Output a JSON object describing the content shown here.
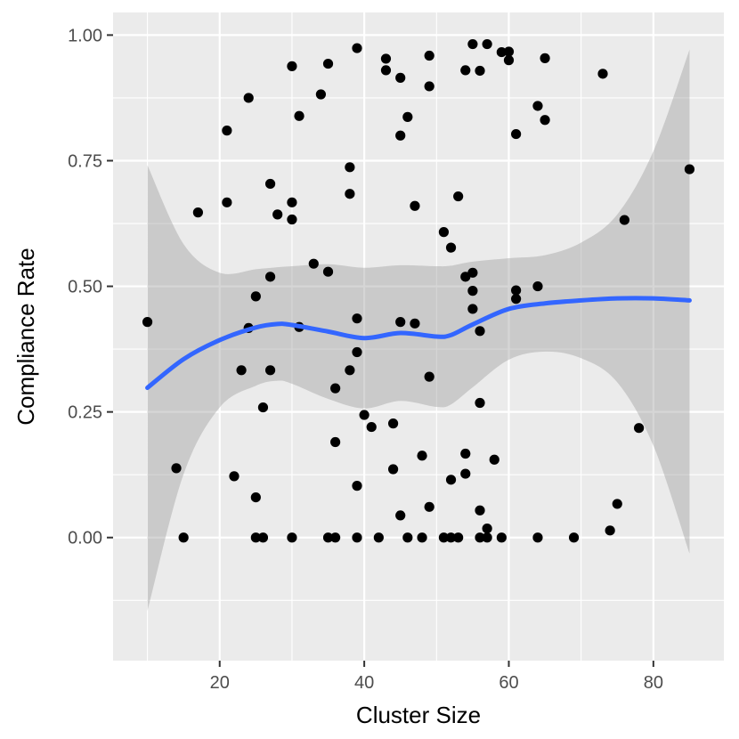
{
  "chart_data": {
    "type": "scatter",
    "title": "",
    "xlabel": "Cluster Size",
    "ylabel": "Compliance Rate",
    "xlim": [
      5.25,
      89.75
    ],
    "ylim": [
      -0.245,
      1.045
    ],
    "xticks": [
      20,
      40,
      60,
      80
    ],
    "xtick_labels": [
      "20",
      "40",
      "60",
      "80"
    ],
    "yticks": [
      0,
      0.25,
      0.5,
      0.75,
      1.0
    ],
    "ytick_labels": [
      "0.00",
      "0.25",
      "0.50",
      "0.75",
      "1.00"
    ],
    "grid": true,
    "legend": "none",
    "colors": {
      "panel": "#ebebeb",
      "grid": "#ffffff",
      "point": "#000000",
      "smooth_line": "#3366ff",
      "ribbon": "#999999"
    },
    "points": [
      {
        "x": 10,
        "y": 0.429
      },
      {
        "x": 14,
        "y": 0.138
      },
      {
        "x": 15,
        "y": 0.0
      },
      {
        "x": 17,
        "y": 0.647
      },
      {
        "x": 21,
        "y": 0.81
      },
      {
        "x": 21,
        "y": 0.667
      },
      {
        "x": 22,
        "y": 0.122
      },
      {
        "x": 23,
        "y": 0.333
      },
      {
        "x": 24,
        "y": 0.875
      },
      {
        "x": 24,
        "y": 0.417
      },
      {
        "x": 25,
        "y": 0.48
      },
      {
        "x": 25,
        "y": 0.08
      },
      {
        "x": 25,
        "y": 0.0
      },
      {
        "x": 26,
        "y": 0.259
      },
      {
        "x": 26,
        "y": 0.0
      },
      {
        "x": 27,
        "y": 0.704
      },
      {
        "x": 27,
        "y": 0.519
      },
      {
        "x": 27,
        "y": 0.333
      },
      {
        "x": 28,
        "y": 0.643
      },
      {
        "x": 30,
        "y": 0.938
      },
      {
        "x": 30,
        "y": 0.667
      },
      {
        "x": 30,
        "y": 0.633
      },
      {
        "x": 30,
        "y": 0.0
      },
      {
        "x": 31,
        "y": 0.839
      },
      {
        "x": 31,
        "y": 0.419
      },
      {
        "x": 33,
        "y": 0.545
      },
      {
        "x": 34,
        "y": 0.882
      },
      {
        "x": 35,
        "y": 0.943
      },
      {
        "x": 35,
        "y": 0.529
      },
      {
        "x": 35,
        "y": 0.0
      },
      {
        "x": 36,
        "y": 0.297
      },
      {
        "x": 36,
        "y": 0.19
      },
      {
        "x": 36,
        "y": 0.0
      },
      {
        "x": 38,
        "y": 0.737
      },
      {
        "x": 38,
        "y": 0.684
      },
      {
        "x": 38,
        "y": 0.333
      },
      {
        "x": 39,
        "y": 0.974
      },
      {
        "x": 39,
        "y": 0.436
      },
      {
        "x": 39,
        "y": 0.369
      },
      {
        "x": 39,
        "y": 0.103
      },
      {
        "x": 39,
        "y": 0.0
      },
      {
        "x": 40,
        "y": 0.244
      },
      {
        "x": 41,
        "y": 0.22
      },
      {
        "x": 42,
        "y": 0.0
      },
      {
        "x": 43,
        "y": 0.953
      },
      {
        "x": 43,
        "y": 0.93
      },
      {
        "x": 44,
        "y": 0.227
      },
      {
        "x": 44,
        "y": 0.136
      },
      {
        "x": 45,
        "y": 0.915
      },
      {
        "x": 45,
        "y": 0.8
      },
      {
        "x": 45,
        "y": 0.429
      },
      {
        "x": 45,
        "y": 0.044
      },
      {
        "x": 46,
        "y": 0.837
      },
      {
        "x": 46,
        "y": 0.0
      },
      {
        "x": 47,
        "y": 0.66
      },
      {
        "x": 47,
        "y": 0.426
      },
      {
        "x": 48,
        "y": 0.163
      },
      {
        "x": 48,
        "y": 0.0
      },
      {
        "x": 49,
        "y": 0.959
      },
      {
        "x": 49,
        "y": 0.898
      },
      {
        "x": 49,
        "y": 0.32
      },
      {
        "x": 49,
        "y": 0.061
      },
      {
        "x": 51,
        "y": 0.608
      },
      {
        "x": 51,
        "y": 0.0
      },
      {
        "x": 52,
        "y": 0.577
      },
      {
        "x": 52,
        "y": 0.115
      },
      {
        "x": 52,
        "y": 0.0
      },
      {
        "x": 53,
        "y": 0.679
      },
      {
        "x": 53,
        "y": 0.0
      },
      {
        "x": 54,
        "y": 0.93
      },
      {
        "x": 54,
        "y": 0.519
      },
      {
        "x": 54,
        "y": 0.167
      },
      {
        "x": 54,
        "y": 0.127
      },
      {
        "x": 55,
        "y": 0.982
      },
      {
        "x": 55,
        "y": 0.527
      },
      {
        "x": 55,
        "y": 0.491
      },
      {
        "x": 55,
        "y": 0.455
      },
      {
        "x": 56,
        "y": 0.929
      },
      {
        "x": 56,
        "y": 0.411
      },
      {
        "x": 56,
        "y": 0.268
      },
      {
        "x": 56,
        "y": 0.054
      },
      {
        "x": 56,
        "y": 0.0
      },
      {
        "x": 57,
        "y": 0.982
      },
      {
        "x": 57,
        "y": 0.018
      },
      {
        "x": 57,
        "y": 0.0
      },
      {
        "x": 58,
        "y": 0.155
      },
      {
        "x": 59,
        "y": 0.966
      },
      {
        "x": 59,
        "y": 0.0
      },
      {
        "x": 60,
        "y": 0.967
      },
      {
        "x": 60,
        "y": 0.95
      },
      {
        "x": 61,
        "y": 0.803
      },
      {
        "x": 61,
        "y": 0.492
      },
      {
        "x": 61,
        "y": 0.475
      },
      {
        "x": 64,
        "y": 0.859
      },
      {
        "x": 64,
        "y": 0.5
      },
      {
        "x": 64,
        "y": 0.0
      },
      {
        "x": 65,
        "y": 0.954
      },
      {
        "x": 65,
        "y": 0.831
      },
      {
        "x": 69,
        "y": 0.0
      },
      {
        "x": 73,
        "y": 0.923
      },
      {
        "x": 74,
        "y": 0.014
      },
      {
        "x": 75,
        "y": 0.067
      },
      {
        "x": 76,
        "y": 0.632
      },
      {
        "x": 78,
        "y": 0.218
      },
      {
        "x": 85,
        "y": 0.733
      }
    ],
    "smooth": {
      "x": [
        10,
        15,
        20,
        25,
        28,
        30,
        35,
        40,
        45,
        50,
        52,
        55,
        60,
        65,
        70,
        75,
        80,
        85
      ],
      "fit": [
        0.298,
        0.355,
        0.393,
        0.418,
        0.425,
        0.423,
        0.41,
        0.397,
        0.407,
        0.4,
        0.403,
        0.424,
        0.455,
        0.466,
        0.472,
        0.476,
        0.476,
        0.472
      ],
      "upper": [
        0.741,
        0.584,
        0.527,
        0.534,
        0.538,
        0.54,
        0.544,
        0.537,
        0.542,
        0.54,
        0.541,
        0.549,
        0.556,
        0.562,
        0.587,
        0.643,
        0.769,
        0.971
      ],
      "lower": [
        -0.146,
        0.126,
        0.259,
        0.302,
        0.312,
        0.306,
        0.276,
        0.257,
        0.272,
        0.26,
        0.265,
        0.299,
        0.354,
        0.37,
        0.357,
        0.309,
        0.183,
        -0.032
      ]
    }
  }
}
